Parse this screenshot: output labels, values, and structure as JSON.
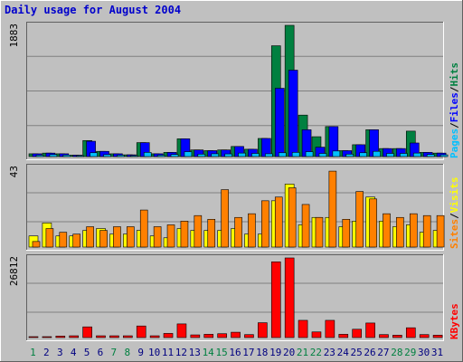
{
  "title": "Daily usage for August 2004",
  "colors": {
    "page_bg": "#c0c0c0",
    "plot_bg": "#c0c0c0",
    "title_text": "#0000cc",
    "axis_text": "#000000",
    "weekday_label": "#000080",
    "weekend_label": "#008040",
    "hits": "#008040",
    "files": "#0000ff",
    "pages": "#00c0ff",
    "visits": "#ffff00",
    "sites": "#ff8000",
    "kbytes": "#ff0000"
  },
  "chart_data": [
    {
      "type": "bar",
      "name": "hits-files-pages",
      "y_max_label": "1883",
      "ylim": [
        0,
        1883
      ],
      "categories": [
        "1",
        "2",
        "3",
        "4",
        "5",
        "6",
        "7",
        "8",
        "9",
        "10",
        "11",
        "12",
        "13",
        "14",
        "15",
        "16",
        "17",
        "18",
        "19",
        "20",
        "21",
        "22",
        "23",
        "24",
        "25",
        "26",
        "27",
        "28",
        "29",
        "30",
        "31"
      ],
      "weekend_days": [
        "1",
        "7",
        "8",
        "14",
        "15",
        "21",
        "22",
        "28",
        "29"
      ],
      "legend": [
        {
          "label": "Pages",
          "color_key": "pages"
        },
        {
          "label": "/",
          "color_key": "axis_text"
        },
        {
          "label": "Files",
          "color_key": "files"
        },
        {
          "label": "/",
          "color_key": "axis_text"
        },
        {
          "label": "Hits",
          "color_key": "hits"
        }
      ],
      "series": [
        {
          "name": "Hits",
          "values": [
            40,
            50,
            40,
            20,
            230,
            75,
            40,
            25,
            200,
            40,
            60,
            255,
            95,
            85,
            95,
            145,
            105,
            260,
            1590,
            1883,
            595,
            285,
            430,
            85,
            170,
            385,
            115,
            115,
            365,
            60,
            50
          ]
        },
        {
          "name": "Files",
          "values": [
            40,
            50,
            40,
            20,
            220,
            75,
            40,
            25,
            200,
            40,
            60,
            255,
            95,
            85,
            95,
            145,
            105,
            260,
            980,
            1240,
            385,
            135,
            430,
            85,
            170,
            385,
            115,
            115,
            195,
            60,
            50
          ]
        },
        {
          "name": "Pages",
          "values": [
            20,
            28,
            22,
            12,
            55,
            28,
            20,
            12,
            60,
            20,
            30,
            70,
            35,
            40,
            38,
            50,
            45,
            40,
            55,
            60,
            70,
            45,
            80,
            35,
            55,
            75,
            45,
            45,
            50,
            30,
            25
          ]
        }
      ]
    },
    {
      "type": "bar",
      "name": "visits-sites",
      "y_max_label": "43",
      "ylim": [
        0,
        43
      ],
      "categories": [
        "1",
        "2",
        "3",
        "4",
        "5",
        "6",
        "7",
        "8",
        "9",
        "10",
        "11",
        "12",
        "13",
        "14",
        "15",
        "16",
        "17",
        "18",
        "19",
        "20",
        "21",
        "22",
        "23",
        "24",
        "25",
        "26",
        "27",
        "28",
        "29",
        "30",
        "31"
      ],
      "weekend_days": [
        "1",
        "7",
        "8",
        "14",
        "15",
        "21",
        "22",
        "28",
        "29"
      ],
      "legend": [
        {
          "label": "Sites",
          "color_key": "sites"
        },
        {
          "label": "/",
          "color_key": "axis_text"
        },
        {
          "label": "Visits",
          "color_key": "visits"
        }
      ],
      "series": [
        {
          "name": "Visits",
          "values": [
            6,
            13,
            6,
            6,
            9,
            10,
            7,
            7,
            9,
            6,
            5,
            10,
            9,
            9,
            9,
            10,
            7,
            7,
            25,
            34,
            12,
            16,
            16,
            11,
            14,
            27,
            14,
            11,
            12,
            8,
            9
          ]
        },
        {
          "name": "Sites",
          "values": [
            3,
            10,
            8,
            7,
            11,
            9,
            11,
            11,
            20,
            11,
            12,
            14,
            17,
            15,
            31,
            16,
            18,
            25,
            27,
            32,
            23,
            16,
            41,
            15,
            30,
            26,
            18,
            16,
            18,
            17,
            17
          ]
        }
      ]
    },
    {
      "type": "bar",
      "name": "kbytes",
      "y_max_label": "26812",
      "ylim": [
        0,
        26812
      ],
      "categories": [
        "1",
        "2",
        "3",
        "4",
        "5",
        "6",
        "7",
        "8",
        "9",
        "10",
        "11",
        "12",
        "13",
        "14",
        "15",
        "16",
        "17",
        "18",
        "19",
        "20",
        "21",
        "22",
        "23",
        "24",
        "25",
        "26",
        "27",
        "28",
        "29",
        "30",
        "31"
      ],
      "weekend_days": [
        "1",
        "7",
        "8",
        "14",
        "15",
        "21",
        "22",
        "28",
        "29"
      ],
      "legend": [
        {
          "label": "KBytes",
          "color_key": "kbytes"
        }
      ],
      "series": [
        {
          "name": "KBytes",
          "values": [
            300,
            300,
            500,
            600,
            3600,
            600,
            600,
            600,
            3900,
            600,
            1400,
            4600,
            900,
            1100,
            1300,
            1800,
            1000,
            5000,
            25500,
            26812,
            5800,
            1900,
            5800,
            1100,
            2800,
            4900,
            1000,
            800,
            3300,
            1000,
            800
          ]
        }
      ]
    }
  ]
}
